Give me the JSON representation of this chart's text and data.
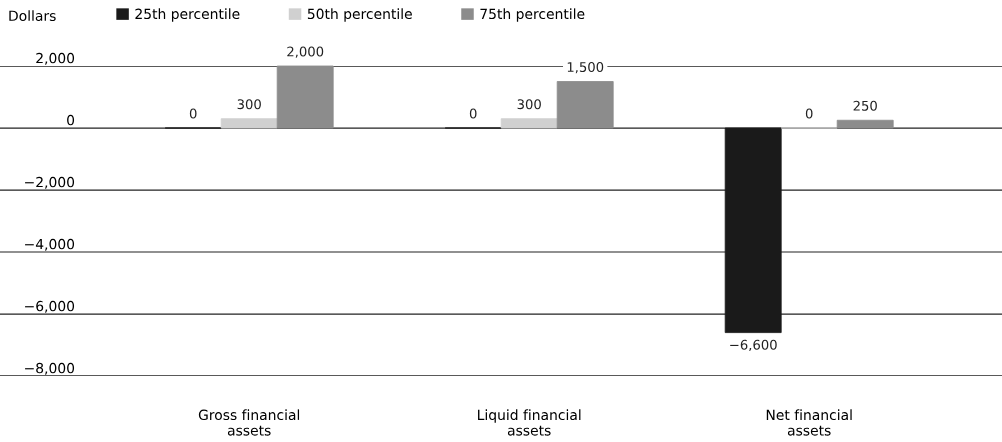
{
  "chart_data": {
    "type": "bar",
    "ylabel": "Dollars",
    "categories": [
      "Gross financial\nassets",
      "Liquid financial\nassets",
      "Net financial\nassets"
    ],
    "series": [
      {
        "name": "25th percentile",
        "color": "#1a1a1a",
        "values": [
          0,
          0,
          -6600
        ],
        "value_labels": [
          "0",
          "0",
          "−6,600"
        ]
      },
      {
        "name": "50th percentile",
        "color": "#d0d0d0",
        "values": [
          300,
          300,
          0
        ],
        "value_labels": [
          "300",
          "300",
          "0"
        ]
      },
      {
        "name": "75th percentile",
        "color": "#8c8c8c",
        "values": [
          2000,
          1500,
          250
        ],
        "value_labels": [
          "2,000",
          "1,500",
          "250"
        ]
      }
    ],
    "ylim": [
      -8000,
      2000
    ],
    "yticks": [
      {
        "value": 2000,
        "label": "2,000"
      },
      0,
      {
        "value": -2000,
        "label": "−2,000"
      },
      {
        "value": -4000,
        "label": "−4,000"
      },
      {
        "value": -6000,
        "label": "−6,000"
      },
      {
        "value": -8000,
        "label": "−8,000"
      }
    ],
    "grid": "y",
    "legend": "top"
  }
}
